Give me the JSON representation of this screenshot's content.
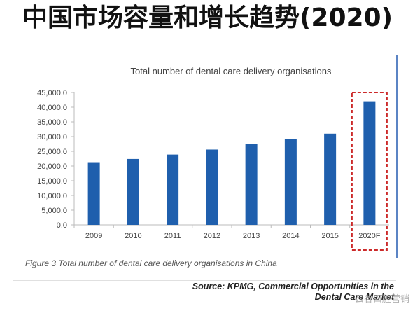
{
  "header": {
    "title": "中国市场容量和增长趋势(2020)"
  },
  "caption": "Figure 3 Total number of dental care delivery organisations in China",
  "source": {
    "line1": "Source: KPMG, Commercial Opportunities in the",
    "line2": "Dental Care Market"
  },
  "watermark": "云谷口腔营销",
  "colors": {
    "bar": "#1f5fad",
    "highlight_box": "#cc2a2a",
    "axis": "#bbbbbb"
  },
  "chart_data": {
    "type": "bar",
    "title": "Total number of dental care delivery organisations",
    "xlabel": "",
    "ylabel": "",
    "categories": [
      "2009",
      "2010",
      "2011",
      "2012",
      "2013",
      "2014",
      "2015",
      "2020F"
    ],
    "values": [
      21300,
      22400,
      23900,
      25600,
      27400,
      29100,
      31000,
      42000
    ],
    "ylim": [
      0,
      45000
    ],
    "yticks": [
      "0.0",
      "5,000.0",
      "10,000.0",
      "15,000.0",
      "20,000.0",
      "25,000.0",
      "30,000.0",
      "35,000.0",
      "40,000.0",
      "45,000.0"
    ],
    "highlighted_category": "2020F",
    "grid": false,
    "legend": "none"
  }
}
